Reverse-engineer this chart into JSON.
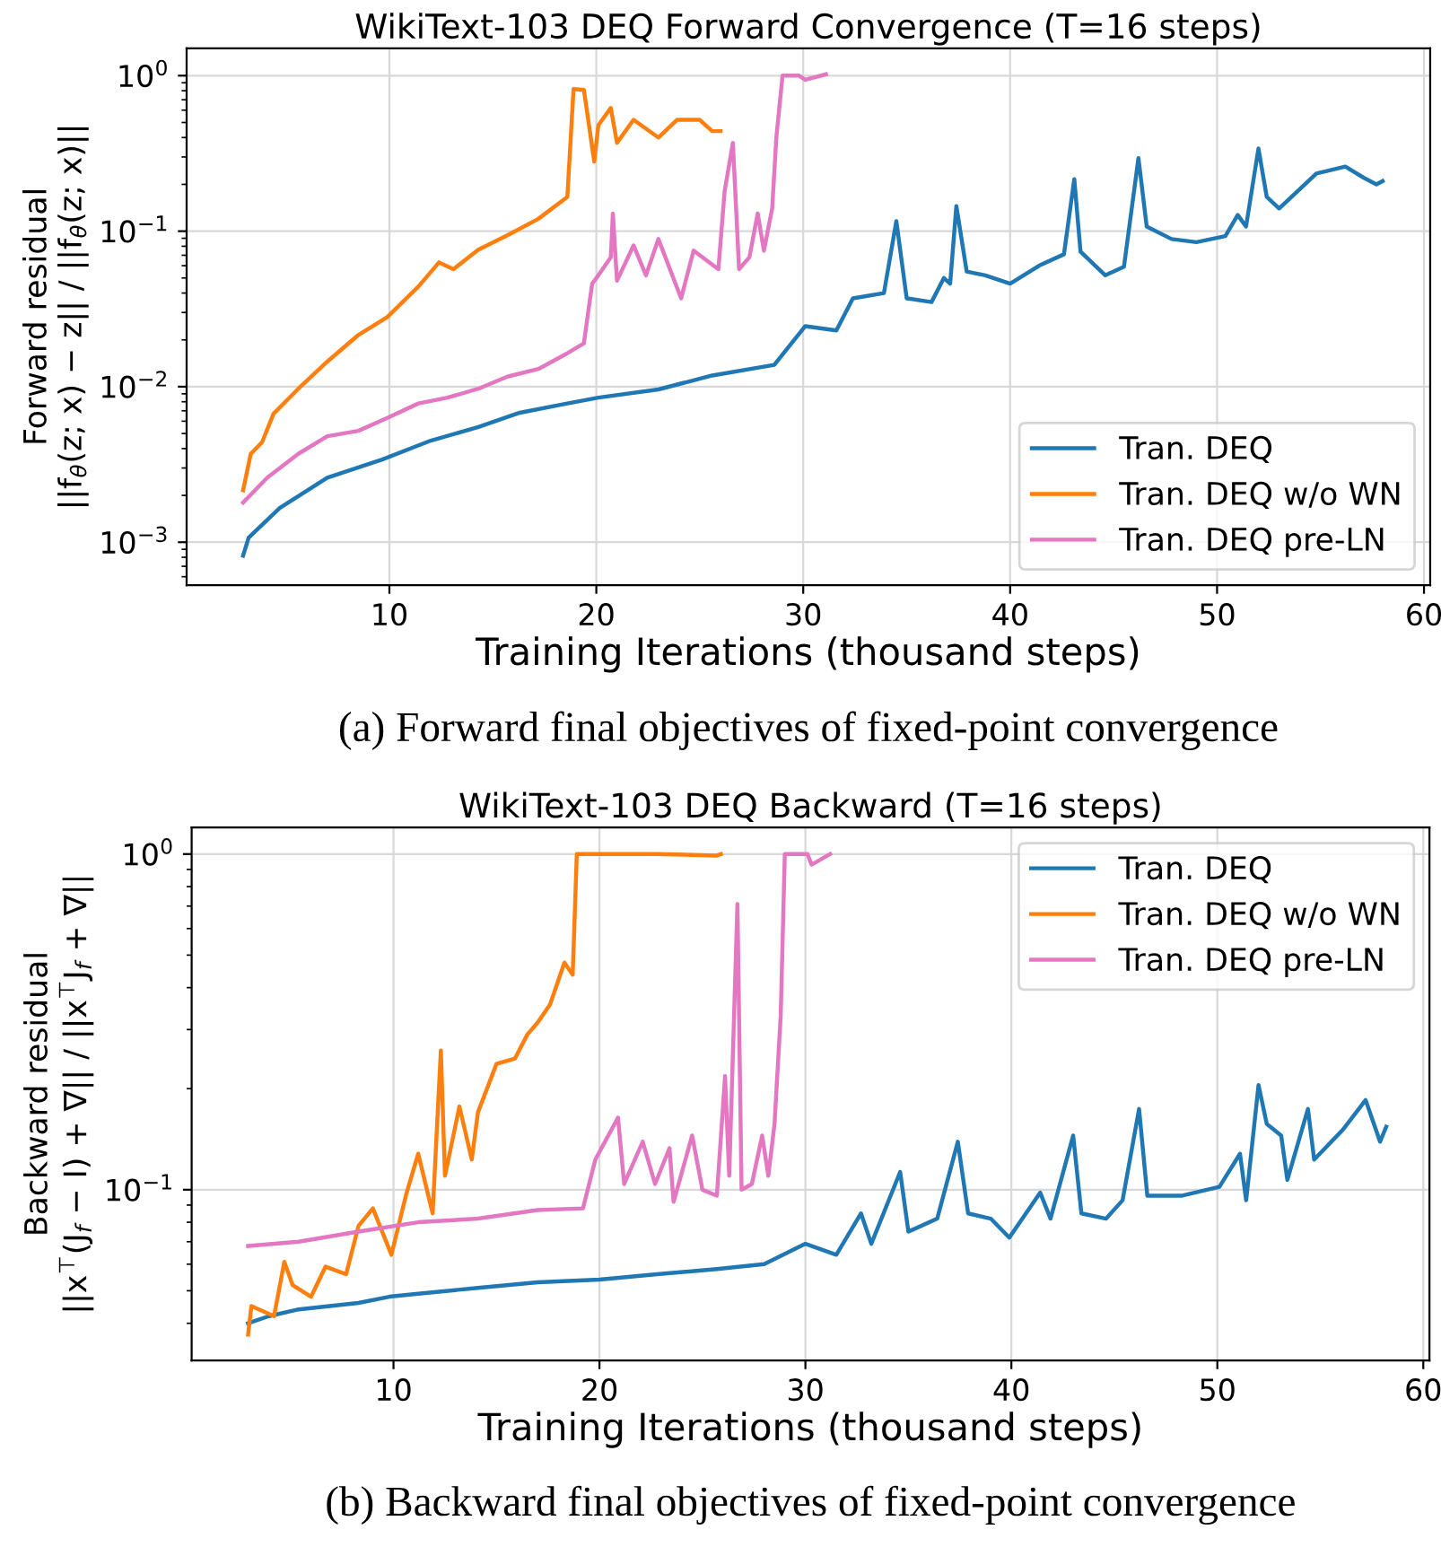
{
  "chart_data": [
    {
      "type": "line",
      "title": "WikiText-103 DEQ Forward Convergence (T=16 steps)",
      "xlabel": "Training Iterations (thousand steps)",
      "ylabel": "Forward residual\n||f$_{θ}$(z; x) − z|| / ||f$_{θ}$(z; x)||",
      "xlim": [
        0.2,
        60.3
      ],
      "xticks": [
        10,
        20,
        30,
        40,
        50,
        60
      ],
      "ylim": [
        0.00053,
        1.5
      ],
      "yticks": [
        {
          "value": 0.001,
          "label": "10$^{−3}$"
        },
        {
          "value": 0.01,
          "label": "10$^{−2}$"
        },
        {
          "value": 0.1,
          "label": "10$^{−1}$"
        },
        {
          "value": 1,
          "label": "10$^{0}$"
        }
      ],
      "log": "y",
      "grid": true,
      "legend": "bottom right",
      "annotations": [
        "(a) Forward final objectives of fixed-point convergence"
      ],
      "series": [
        {
          "name": "Tran. DEQ",
          "color": "#1f77b4",
          "x": [
            2.93,
            3.2,
            4.7,
            7.0,
            9.65,
            12,
            14.3,
            16.3,
            18.6,
            20.1,
            23,
            25.6,
            28.6,
            30.1,
            31.6,
            32.4,
            33.9,
            34.5,
            35.0,
            36.2,
            36.8,
            37.1,
            37.4,
            37.9,
            38.8,
            40,
            41.4,
            42.6,
            43.1,
            43.4,
            44.6,
            45.5,
            46.2,
            46.6,
            47.8,
            49,
            50.4,
            51,
            51.4,
            52,
            52.4,
            53,
            54.8,
            56.2,
            57.1,
            57.7,
            58
          ],
          "values": [
            0.00082,
            0.00107,
            0.00166,
            0.0026,
            0.0034,
            0.0045,
            0.0055,
            0.0068,
            0.0078,
            0.0085,
            0.0096,
            0.0118,
            0.0138,
            0.0245,
            0.023,
            0.037,
            0.04,
            0.116,
            0.037,
            0.035,
            0.05,
            0.046,
            0.145,
            0.055,
            0.052,
            0.046,
            0.06,
            0.071,
            0.216,
            0.074,
            0.052,
            0.059,
            0.295,
            0.107,
            0.089,
            0.085,
            0.093,
            0.127,
            0.107,
            0.34,
            0.166,
            0.14,
            0.235,
            0.26,
            0.22,
            0.2,
            0.21
          ]
        },
        {
          "name": "Tran. DEQ w/o WN",
          "color": "#ff7f0e",
          "x": [
            2.93,
            3.3,
            3.85,
            4.4,
            5.6,
            7.0,
            8.5,
            9.9,
            11.4,
            12.4,
            13.1,
            14.3,
            15.7,
            17.2,
            18.6,
            18.9,
            19.4,
            19.9,
            20.1,
            20.7,
            21,
            21.8,
            23,
            23.9,
            25,
            25.6,
            26
          ],
          "values": [
            0.00216,
            0.0037,
            0.0044,
            0.0067,
            0.0097,
            0.0145,
            0.0215,
            0.028,
            0.044,
            0.063,
            0.057,
            0.076,
            0.094,
            0.12,
            0.166,
            0.82,
            0.81,
            0.28,
            0.48,
            0.62,
            0.37,
            0.52,
            0.4,
            0.52,
            0.52,
            0.44,
            0.44
          ]
        },
        {
          "name": "Tran. DEQ pre-LN",
          "color": "#e377c2",
          "x": [
            2.93,
            4.1,
            5.6,
            7.0,
            8.5,
            9.9,
            11.4,
            12.8,
            14.3,
            15.7,
            17.2,
            18.6,
            19.4,
            19.8,
            20.1,
            20.7,
            20.8,
            21,
            21.8,
            22.4,
            23,
            24.1,
            24.7,
            25.9,
            26.2,
            26.6,
            26.9,
            27.4,
            27.8,
            28.1,
            28.5,
            28.7,
            29,
            29.8,
            30.1,
            31.1
          ],
          "values": [
            0.0018,
            0.0026,
            0.0037,
            0.0048,
            0.0052,
            0.0063,
            0.0078,
            0.0085,
            0.0097,
            0.0116,
            0.013,
            0.0164,
            0.019,
            0.046,
            0.052,
            0.068,
            0.13,
            0.048,
            0.081,
            0.052,
            0.089,
            0.037,
            0.075,
            0.057,
            0.18,
            0.37,
            0.057,
            0.068,
            0.13,
            0.075,
            0.14,
            0.4,
            1.0,
            1.0,
            0.94,
            1.02
          ]
        }
      ]
    },
    {
      "type": "line",
      "title": "WikiText-103 DEQ Backward (T=16 steps)",
      "xlabel": "Training Iterations (thousand steps)",
      "ylabel": "Backward residual\n||x$^{⊤}$(J$_{f}$ − I) + ∇|| / ||x$^{⊤}$J$_{f}$ + ∇||",
      "xlim": [
        0.2,
        60.3
      ],
      "xticks": [
        10,
        20,
        30,
        40,
        50,
        60
      ],
      "ylim": [
        0.031,
        1.2
      ],
      "yticks": [
        {
          "value": 0.1,
          "label": "10$^{−1}$"
        },
        {
          "value": 1,
          "label": "10$^{0}$"
        }
      ],
      "log": "y",
      "grid": true,
      "legend": "top right",
      "annotations": [
        "(b) Backward final objectives of fixed-point convergence"
      ],
      "series": [
        {
          "name": "Tran. DEQ",
          "color": "#1f77b4",
          "x": [
            2.94,
            3.95,
            5.4,
            8.3,
            9.8,
            11.2,
            14.1,
            17,
            20,
            22.8,
            25.7,
            28,
            30,
            31.5,
            32.7,
            33.2,
            34.6,
            35,
            36.4,
            37.4,
            37.9,
            39,
            39.9,
            41.4,
            41.9,
            43,
            43.4,
            44.6,
            45.4,
            46.2,
            46.6,
            48.3,
            50.1,
            51.1,
            51.4,
            52,
            52.4,
            53.1,
            53.4,
            54.4,
            54.7,
            56.1,
            57.2,
            57.9,
            58.2
          ],
          "values": [
            0.04,
            0.042,
            0.044,
            0.046,
            0.048,
            0.049,
            0.051,
            0.053,
            0.054,
            0.056,
            0.058,
            0.06,
            0.069,
            0.064,
            0.085,
            0.069,
            0.113,
            0.075,
            0.082,
            0.139,
            0.085,
            0.082,
            0.072,
            0.098,
            0.082,
            0.145,
            0.085,
            0.082,
            0.093,
            0.174,
            0.096,
            0.096,
            0.102,
            0.128,
            0.093,
            0.205,
            0.157,
            0.145,
            0.107,
            0.174,
            0.123,
            0.151,
            0.185,
            0.139,
            0.154
          ]
        },
        {
          "name": "Tran. DEQ w/o WN",
          "color": "#ff7f0e",
          "x": [
            2.94,
            3.1,
            4.2,
            4.7,
            5.1,
            6.0,
            6.7,
            7.7,
            8.3,
            9.0,
            9.9,
            10.6,
            11.2,
            11.9,
            12.3,
            12.5,
            13.2,
            13.8,
            14.1,
            15,
            15.9,
            16.5,
            17,
            17.6,
            18.3,
            18.7,
            18.9,
            22.8,
            25.7,
            25.9
          ],
          "values": [
            0.037,
            0.045,
            0.042,
            0.061,
            0.052,
            0.048,
            0.059,
            0.056,
            0.078,
            0.088,
            0.064,
            0.096,
            0.128,
            0.085,
            0.26,
            0.11,
            0.177,
            0.123,
            0.17,
            0.237,
            0.246,
            0.29,
            0.315,
            0.356,
            0.475,
            0.437,
            1.0,
            1.0,
            0.99,
            1.0
          ]
        },
        {
          "name": "Tran. DEQ pre-LN",
          "color": "#e377c2",
          "x": [
            2.94,
            5.4,
            8.3,
            11.2,
            14.1,
            17,
            19.2,
            19.8,
            20.9,
            21.2,
            22.1,
            22.7,
            23.4,
            23.6,
            24.5,
            25,
            25.7,
            26.1,
            26.3,
            26.7,
            26.9,
            27.4,
            27.9,
            28.2,
            28.5,
            28.8,
            29,
            30.1,
            30.3,
            31.2
          ],
          "values": [
            0.068,
            0.07,
            0.075,
            0.08,
            0.082,
            0.087,
            0.088,
            0.123,
            0.164,
            0.104,
            0.139,
            0.104,
            0.133,
            0.092,
            0.145,
            0.1,
            0.096,
            0.218,
            0.11,
            0.71,
            0.1,
            0.104,
            0.145,
            0.11,
            0.157,
            0.33,
            1.0,
            1.0,
            0.93,
            1.0
          ]
        }
      ]
    }
  ]
}
